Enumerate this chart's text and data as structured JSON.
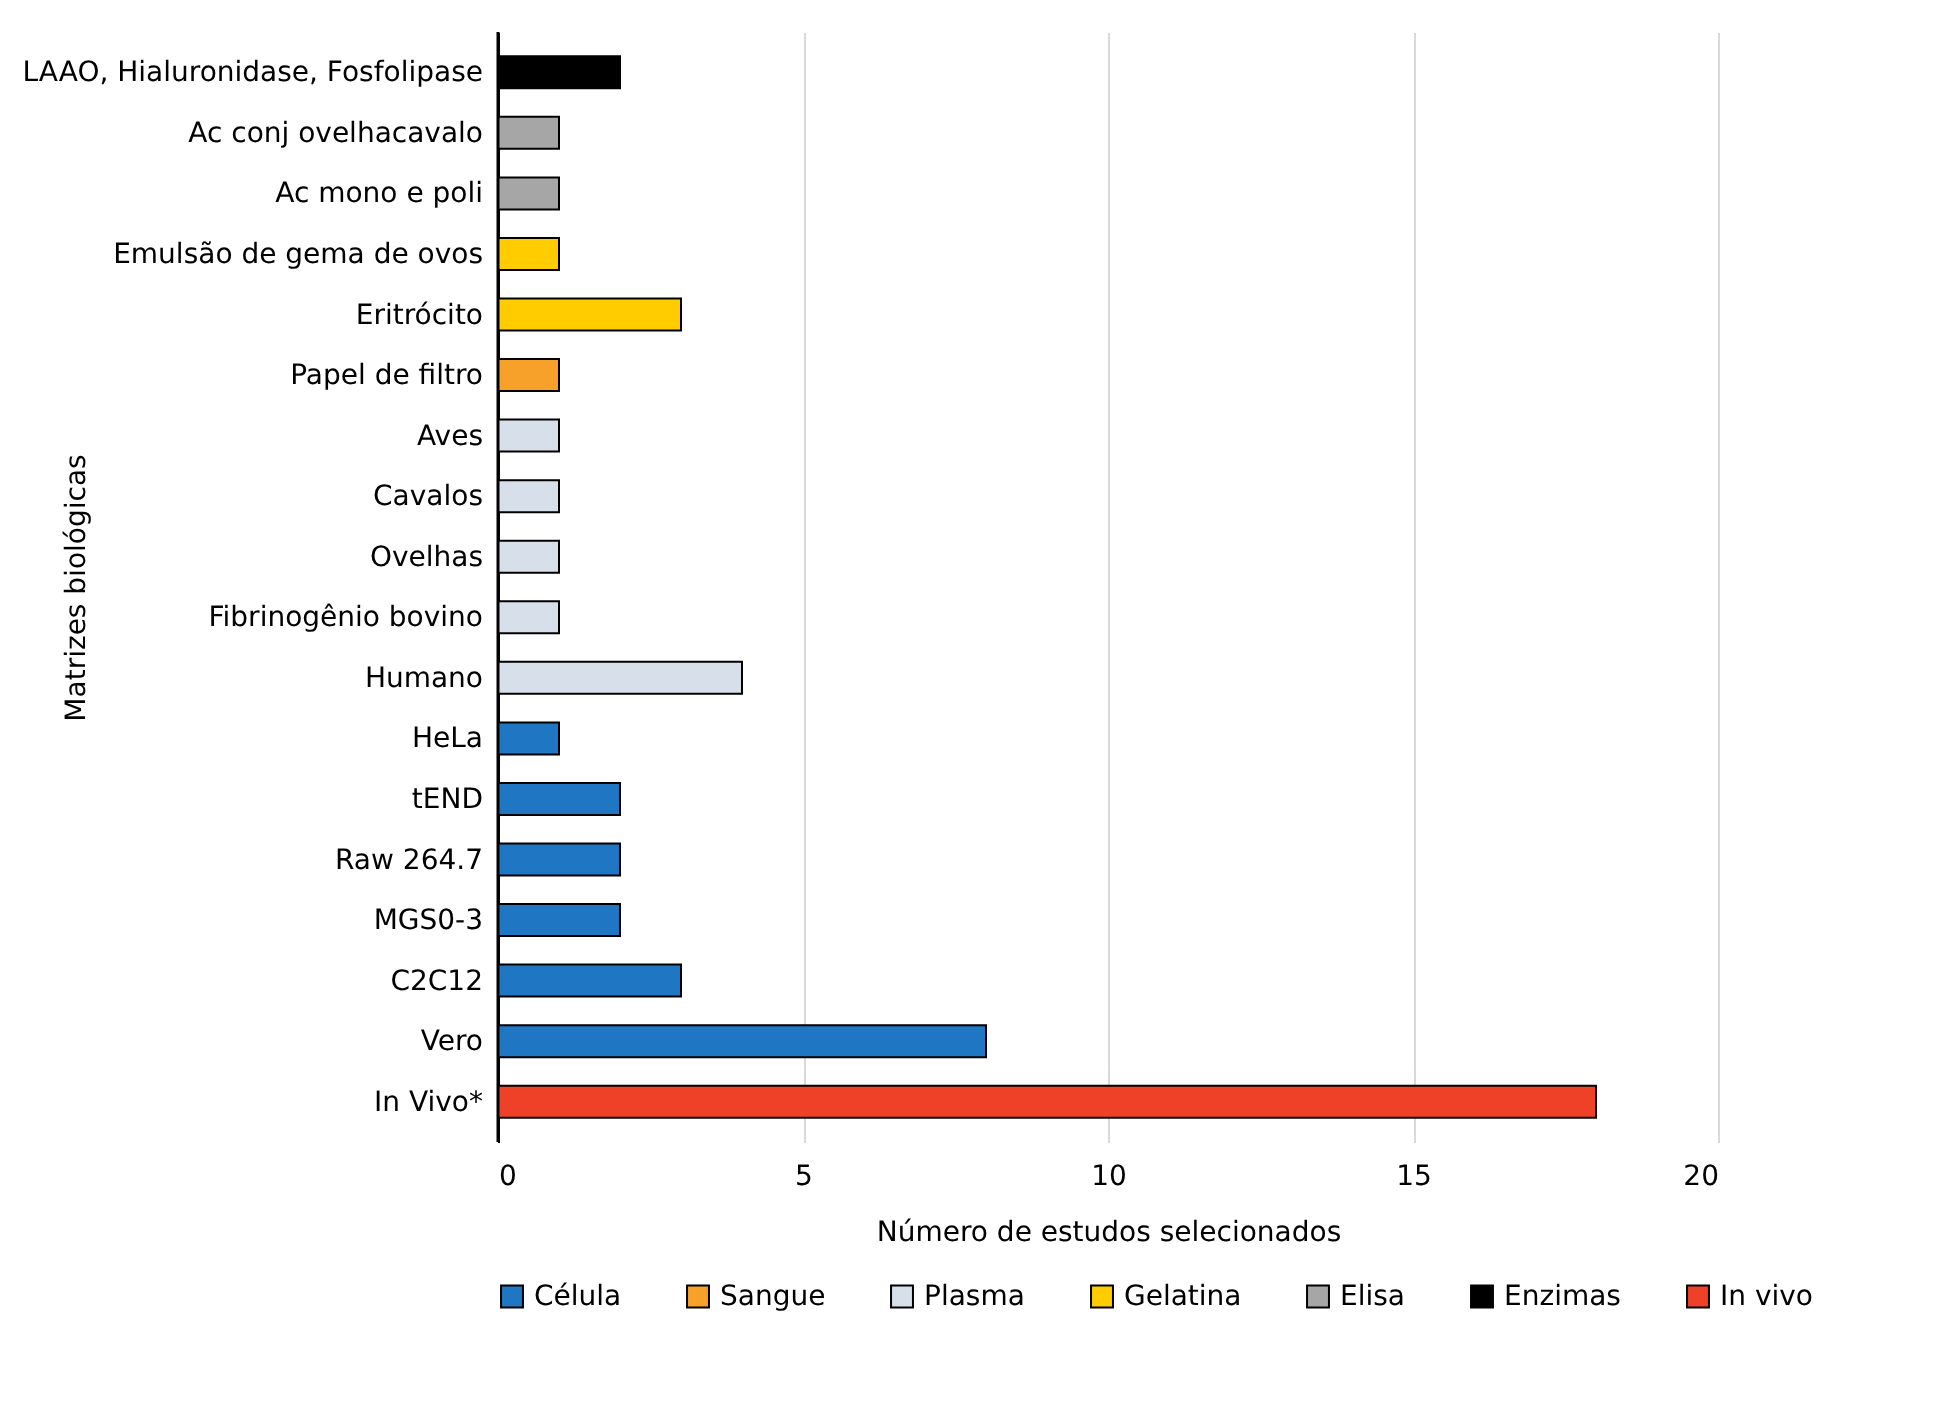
{
  "chart_data": {
    "type": "bar",
    "orientation": "horizontal",
    "xlabel": "Número de estudos selecionados",
    "ylabel": "Matrizes biológicas",
    "categories": [
      "LAAO, Hialuronidase, Fosfolipase",
      "Ac conj ovelhacavalo",
      "Ac mono e poli",
      "Emulsão de gema de ovos",
      "Eritrócito",
      "Papel de filtro",
      "Aves",
      "Cavalos",
      "Ovelhas",
      "Fibrinogênio bovino",
      "Humano",
      "HeLa",
      "tEND",
      "Raw 264.7",
      "MGS0-3",
      "C2C12",
      "Vero",
      "In Vivo*"
    ],
    "series": [
      {
        "name": "Célula",
        "color": "#1f77c4",
        "values": [
          null,
          null,
          null,
          null,
          null,
          null,
          null,
          null,
          null,
          null,
          null,
          1,
          2,
          2,
          2,
          3,
          8,
          null
        ]
      },
      {
        "name": "Sangue",
        "color": "#f7a12a",
        "values": [
          null,
          null,
          null,
          null,
          null,
          1,
          null,
          null,
          null,
          null,
          null,
          null,
          null,
          null,
          null,
          null,
          null,
          null
        ]
      },
      {
        "name": "Plasma",
        "color": "#d6dfea",
        "values": [
          null,
          null,
          null,
          null,
          null,
          null,
          1,
          1,
          1,
          1,
          4,
          null,
          null,
          null,
          null,
          null,
          null,
          null
        ]
      },
      {
        "name": "Gelatina",
        "color": "#ffcc00",
        "values": [
          null,
          null,
          null,
          1,
          3,
          null,
          null,
          null,
          null,
          null,
          null,
          null,
          null,
          null,
          null,
          null,
          null,
          null
        ]
      },
      {
        "name": "Elisa",
        "color": "#a6a6a6",
        "values": [
          null,
          1,
          1,
          null,
          null,
          null,
          null,
          null,
          null,
          null,
          null,
          null,
          null,
          null,
          null,
          null,
          null,
          null
        ]
      },
      {
        "name": "Enzimas",
        "color": "#000000",
        "values": [
          2,
          null,
          null,
          null,
          null,
          null,
          null,
          null,
          null,
          null,
          null,
          null,
          null,
          null,
          null,
          null,
          null,
          null
        ]
      },
      {
        "name": "In vivo",
        "color": "#ee4127",
        "values": [
          null,
          null,
          null,
          null,
          null,
          null,
          null,
          null,
          null,
          null,
          null,
          null,
          null,
          null,
          null,
          null,
          null,
          18
        ]
      }
    ],
    "xlim": [
      0,
      20
    ],
    "xticks": [
      0,
      5,
      10,
      15,
      20
    ],
    "grid": "x",
    "legend": "bottom"
  }
}
